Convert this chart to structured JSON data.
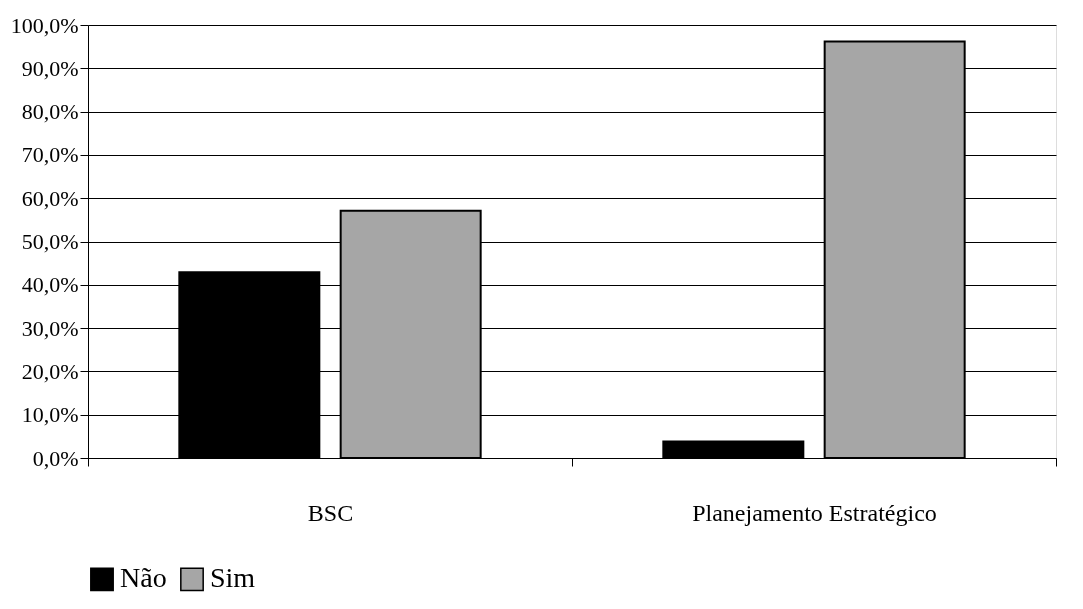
{
  "chart_data": {
    "type": "bar",
    "categories": [
      "BSC",
      "Planejamento Estratégico"
    ],
    "series": [
      {
        "name": "Não",
        "color": "#000000",
        "values": [
          42.9,
          3.8
        ]
      },
      {
        "name": "Sim",
        "color": "#a6a6a6",
        "values": [
          57.1,
          96.2
        ]
      }
    ],
    "ylim": [
      0,
      100
    ],
    "yticks": [
      {
        "value": 0,
        "label": "0,0%"
      },
      {
        "value": 10,
        "label": "10,0%"
      },
      {
        "value": 20,
        "label": "20,0%"
      },
      {
        "value": 30,
        "label": "30,0%"
      },
      {
        "value": 40,
        "label": "40,0%"
      },
      {
        "value": 50,
        "label": "50,0%"
      },
      {
        "value": 60,
        "label": "60,0%"
      },
      {
        "value": 70,
        "label": "70,0%"
      },
      {
        "value": 80,
        "label": "80,0%"
      },
      {
        "value": 90,
        "label": "90,0%"
      },
      {
        "value": 100,
        "label": "100,0%"
      }
    ],
    "grid": "y",
    "legend": "bottom"
  }
}
